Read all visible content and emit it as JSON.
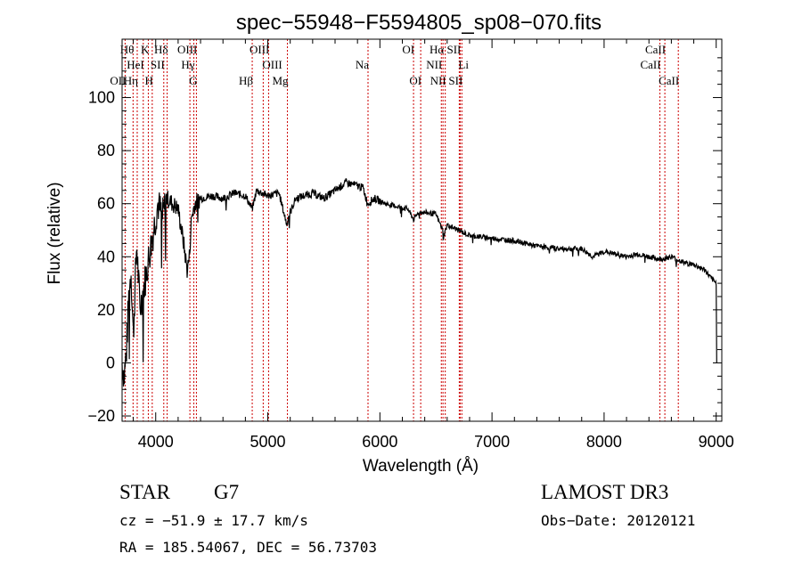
{
  "chart_data": {
    "type": "line",
    "title": "spec−55948−F5594805_sp08−070.fits",
    "xlabel": "Wavelength (Å)",
    "ylabel": "Flux (relative)",
    "xlim": [
      3700,
      9050
    ],
    "ylim": [
      -22,
      122
    ],
    "x_ticks": [
      4000,
      5000,
      6000,
      7000,
      8000,
      9000
    ],
    "x_tick_labels": [
      "4000",
      "5000",
      "6000",
      "7000",
      "8000",
      "9000"
    ],
    "y_ticks": [
      -20,
      0,
      20,
      40,
      60,
      80,
      100
    ],
    "y_tick_labels": [
      "−20",
      "0",
      "20",
      "40",
      "60",
      "80",
      "100"
    ],
    "grid": false,
    "series": [
      {
        "name": "flux",
        "x": [
          3700,
          3720,
          3740,
          3760,
          3780,
          3800,
          3830,
          3860,
          3900,
          3940,
          3980,
          4020,
          4060,
          4100,
          4150,
          4200,
          4250,
          4280,
          4300,
          4320,
          4350,
          4400,
          4500,
          4600,
          4700,
          4800,
          4861,
          4900,
          5000,
          5100,
          5170,
          5183,
          5250,
          5400,
          5500,
          5600,
          5700,
          5780,
          5850,
          5890,
          5950,
          6050,
          6150,
          6250,
          6300,
          6350,
          6500,
          6560,
          6563,
          6600,
          6700,
          6800,
          7000,
          7200,
          7400,
          7600,
          7800,
          7900,
          8000,
          8100,
          8200,
          8300,
          8400,
          8500,
          8600,
          8650,
          8700,
          8800,
          8900,
          8950,
          9000,
          9005
        ],
        "y": [
          0,
          -5,
          5,
          25,
          35,
          10,
          45,
          20,
          30,
          40,
          50,
          60,
          55,
          62,
          60,
          58,
          45,
          35,
          40,
          55,
          60,
          62,
          63,
          62,
          64,
          63,
          58,
          65,
          63,
          64,
          52,
          55,
          62,
          64,
          62,
          65,
          68,
          67,
          66,
          60,
          62,
          60,
          59,
          58,
          54,
          57,
          56,
          50,
          47,
          52,
          50,
          48,
          47,
          46,
          44,
          43,
          43,
          40,
          42,
          41,
          40,
          41,
          40,
          39,
          40,
          39,
          38,
          37,
          35,
          32,
          30,
          0
        ]
      }
    ],
    "line_ids": [
      {
        "name": "OII",
        "wave": 3727,
        "row": 2,
        "side": "left"
      },
      {
        "name": "Hθ",
        "wave": 3798,
        "row": 0,
        "side": "left"
      },
      {
        "name": "Hη",
        "wave": 3835,
        "row": 2,
        "side": "left"
      },
      {
        "name": "HeI",
        "wave": 3889,
        "row": 1,
        "side": "left"
      },
      {
        "name": "K",
        "wave": 3934,
        "row": 0,
        "side": "left"
      },
      {
        "name": "H",
        "wave": 3969,
        "row": 2,
        "side": "left"
      },
      {
        "name": "SII",
        "wave": 4072,
        "row": 1,
        "side": "left"
      },
      {
        "name": "Hδ",
        "wave": 4102,
        "row": 0,
        "side": "left"
      },
      {
        "name": "G",
        "wave": 4305,
        "row": 2,
        "side": "right"
      },
      {
        "name": "Hγ",
        "wave": 4340,
        "row": 1,
        "side": "left"
      },
      {
        "name": "OIII",
        "wave": 4363,
        "row": 0,
        "side": "left"
      },
      {
        "name": "Hβ",
        "wave": 4861,
        "row": 2,
        "side": "left"
      },
      {
        "name": "OIII",
        "wave": 4959,
        "row": 1,
        "side": "right"
      },
      {
        "name": "OIII",
        "wave": 5007,
        "row": 0,
        "side": "left"
      },
      {
        "name": "Mg",
        "wave": 5175,
        "row": 2,
        "side": "left"
      },
      {
        "name": "Na",
        "wave": 5894,
        "row": 1,
        "side": "left"
      },
      {
        "name": "OI",
        "wave": 6300,
        "row": 0,
        "side": "left"
      },
      {
        "name": "OI",
        "wave": 6364,
        "row": 2,
        "side": "left"
      },
      {
        "name": "NII",
        "wave": 6548,
        "row": 1,
        "side": "left"
      },
      {
        "name": "Hα",
        "wave": 6563,
        "row": 0,
        "side": "left"
      },
      {
        "name": "NII",
        "wave": 6583,
        "row": 2,
        "side": "left"
      },
      {
        "name": "Li",
        "wave": 6708,
        "row": 1,
        "side": "right"
      },
      {
        "name": "SII",
        "wave": 6716,
        "row": 0,
        "side": "left"
      },
      {
        "name": "SII",
        "wave": 6731,
        "row": 2,
        "side": "left"
      },
      {
        "name": "CaII",
        "wave": 8498,
        "row": 1,
        "side": "left"
      },
      {
        "name": "CaII",
        "wave": 8542,
        "row": 0,
        "side": "left"
      },
      {
        "name": "CaII",
        "wave": 8662,
        "row": 2,
        "side": "left"
      }
    ]
  },
  "info": {
    "class": "STAR",
    "subclass": "G7",
    "cz": "cz = −51.9 ± 17.7 km/s",
    "radec": "RA = 185.54067, DEC =  56.73703",
    "survey": "LAMOST DR3",
    "obs_date": "Obs−Date: 20120121"
  },
  "colors": {
    "line_marker": "#cc0000",
    "spectrum": "#000000"
  }
}
